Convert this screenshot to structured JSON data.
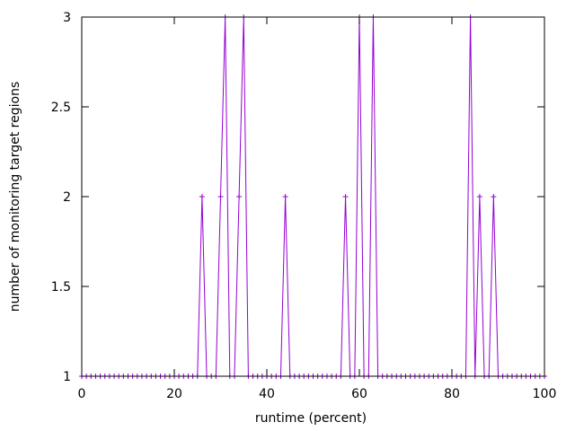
{
  "colors": {
    "series": "#9400d3",
    "axis": "#000000",
    "background": "#ffffff"
  },
  "chart_data": {
    "type": "line",
    "title": "",
    "xlabel": "runtime (percent)",
    "ylabel": "number of monitoring target regions",
    "xlim": [
      0,
      100
    ],
    "ylim": [
      1,
      3
    ],
    "xticks": [
      0,
      20,
      40,
      60,
      80,
      100
    ],
    "xtick_labels": [
      "0",
      "20",
      "40",
      "60",
      "80",
      "100"
    ],
    "yticks": [
      1,
      1.5,
      2,
      2.5,
      3
    ],
    "ytick_labels": [
      "1",
      "1.5",
      "2",
      "2.5",
      "3"
    ],
    "grid": false,
    "marker": "+",
    "series": [
      {
        "x": [
          0,
          1,
          2,
          3,
          4,
          5,
          6,
          7,
          8,
          9,
          10,
          11,
          12,
          13,
          14,
          15,
          16,
          17,
          18,
          19,
          20,
          21,
          22,
          23,
          24,
          25,
          26,
          27,
          28,
          29,
          30,
          31,
          32,
          33,
          34,
          35,
          36,
          37,
          38,
          39,
          40,
          41,
          42,
          43,
          44,
          45,
          46,
          47,
          48,
          49,
          50,
          51,
          52,
          53,
          54,
          55,
          56,
          57,
          58,
          59,
          60,
          61,
          62,
          63,
          64,
          65,
          66,
          67,
          68,
          69,
          70,
          71,
          72,
          73,
          74,
          75,
          76,
          77,
          78,
          79,
          80,
          81,
          82,
          83,
          84,
          85,
          86,
          87,
          88,
          89,
          90,
          91,
          92,
          93,
          94,
          95,
          96,
          97,
          98,
          99,
          100
        ],
        "values": [
          1,
          1,
          1,
          1,
          1,
          1,
          1,
          1,
          1,
          1,
          1,
          1,
          1,
          1,
          1,
          1,
          1,
          1,
          1,
          1,
          1,
          1,
          1,
          1,
          1,
          1,
          2,
          1,
          1,
          1,
          2,
          3,
          1,
          1,
          2,
          3,
          1,
          1,
          1,
          1,
          1,
          1,
          1,
          1,
          2,
          1,
          1,
          1,
          1,
          1,
          1,
          1,
          1,
          1,
          1,
          1,
          1,
          2,
          1,
          1,
          3,
          1,
          1,
          3,
          1,
          1,
          1,
          1,
          1,
          1,
          1,
          1,
          1,
          1,
          1,
          1,
          1,
          1,
          1,
          1,
          1,
          1,
          1,
          1,
          3,
          1,
          2,
          1,
          1,
          2,
          1,
          1,
          1,
          1,
          1,
          1,
          1,
          1,
          1,
          1,
          1
        ]
      }
    ]
  }
}
